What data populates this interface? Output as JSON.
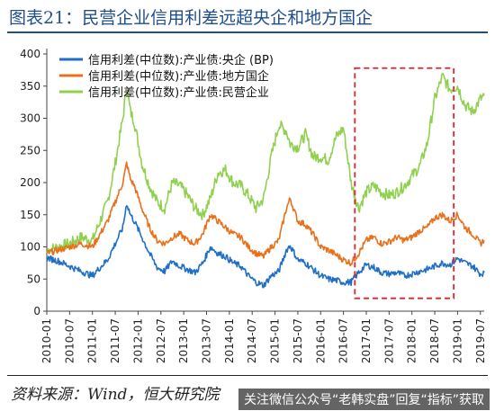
{
  "header": {
    "title": "图表21：民营企业信用利差远超央企和地方国企"
  },
  "footer": {
    "source": "资料来源：Wind，恒大研究院",
    "watermark": "关注微信公众号“老韩实盘”回复“指标”获取"
  },
  "colors": {
    "central": "#1f6fc5",
    "local": "#e8711c",
    "private": "#8fd14f",
    "highlight": "#e0242a",
    "title": "#1f4e8c"
  },
  "chart_data": {
    "type": "line",
    "ylim": [
      0,
      400
    ],
    "yticks": [
      0,
      50,
      100,
      150,
      200,
      250,
      300,
      350,
      400
    ],
    "x_range": [
      "2010-01",
      "2019-08"
    ],
    "xticks": [
      "2010-01",
      "2010-07",
      "2011-01",
      "2011-07",
      "2012-01",
      "2012-07",
      "2013-01",
      "2013-07",
      "2014-01",
      "2014-07",
      "2015-01",
      "2015-07",
      "2016-01",
      "2016-07",
      "2017-01",
      "2017-07",
      "2018-01",
      "2018-07",
      "2019-01",
      "2019-07"
    ],
    "legend_position": "top-left",
    "grid": false,
    "highlight_box": {
      "x_start": "2016-10",
      "x_end": "2018-12",
      "y_start": 20,
      "y_end": 378,
      "style": "dashed"
    },
    "series": [
      {
        "name": "信用利差(中位数):产业债:央企 (BP)",
        "color_key": "central",
        "points": [
          [
            "2010-01",
            83
          ],
          [
            "2010-04",
            78
          ],
          [
            "2010-07",
            70
          ],
          [
            "2010-10",
            62
          ],
          [
            "2011-01",
            55
          ],
          [
            "2011-03",
            68
          ],
          [
            "2011-05",
            80
          ],
          [
            "2011-07",
            105
          ],
          [
            "2011-09",
            130
          ],
          [
            "2011-10",
            168
          ],
          [
            "2011-11",
            150
          ],
          [
            "2011-12",
            140
          ],
          [
            "2012-02",
            115
          ],
          [
            "2012-04",
            90
          ],
          [
            "2012-06",
            68
          ],
          [
            "2012-08",
            62
          ],
          [
            "2012-10",
            78
          ],
          [
            "2012-12",
            70
          ],
          [
            "2013-02",
            65
          ],
          [
            "2013-04",
            60
          ],
          [
            "2013-06",
            75
          ],
          [
            "2013-08",
            100
          ],
          [
            "2013-10",
            90
          ],
          [
            "2013-12",
            85
          ],
          [
            "2014-02",
            75
          ],
          [
            "2014-04",
            70
          ],
          [
            "2014-06",
            55
          ],
          [
            "2014-08",
            45
          ],
          [
            "2014-10",
            40
          ],
          [
            "2014-12",
            55
          ],
          [
            "2015-02",
            62
          ],
          [
            "2015-04",
            95
          ],
          [
            "2015-05",
            102
          ],
          [
            "2015-07",
            80
          ],
          [
            "2015-09",
            75
          ],
          [
            "2015-11",
            65
          ],
          [
            "2016-01",
            55
          ],
          [
            "2016-03",
            50
          ],
          [
            "2016-05",
            48
          ],
          [
            "2016-07",
            45
          ],
          [
            "2016-09",
            45
          ],
          [
            "2016-11",
            60
          ],
          [
            "2017-01",
            72
          ],
          [
            "2017-03",
            68
          ],
          [
            "2017-05",
            60
          ],
          [
            "2017-07",
            58
          ],
          [
            "2017-09",
            60
          ],
          [
            "2017-11",
            55
          ],
          [
            "2018-01",
            58
          ],
          [
            "2018-03",
            62
          ],
          [
            "2018-05",
            65
          ],
          [
            "2018-07",
            70
          ],
          [
            "2018-09",
            75
          ],
          [
            "2018-11",
            72
          ],
          [
            "2019-01",
            82
          ],
          [
            "2019-03",
            75
          ],
          [
            "2019-05",
            70
          ],
          [
            "2019-07",
            58
          ],
          [
            "2019-08",
            60
          ]
        ]
      },
      {
        "name": "信用利差(中位数):产业债:地方国企",
        "color_key": "local",
        "points": [
          [
            "2010-01",
            90
          ],
          [
            "2010-04",
            95
          ],
          [
            "2010-07",
            100
          ],
          [
            "2010-10",
            105
          ],
          [
            "2011-01",
            100
          ],
          [
            "2011-03",
            120
          ],
          [
            "2011-05",
            140
          ],
          [
            "2011-07",
            170
          ],
          [
            "2011-09",
            200
          ],
          [
            "2011-10",
            230
          ],
          [
            "2011-11",
            205
          ],
          [
            "2011-12",
            195
          ],
          [
            "2012-02",
            160
          ],
          [
            "2012-04",
            130
          ],
          [
            "2012-06",
            110
          ],
          [
            "2012-08",
            105
          ],
          [
            "2012-10",
            115
          ],
          [
            "2012-12",
            120
          ],
          [
            "2013-02",
            110
          ],
          [
            "2013-04",
            105
          ],
          [
            "2013-06",
            120
          ],
          [
            "2013-08",
            150
          ],
          [
            "2013-10",
            140
          ],
          [
            "2013-12",
            130
          ],
          [
            "2014-02",
            120
          ],
          [
            "2014-04",
            115
          ],
          [
            "2014-06",
            100
          ],
          [
            "2014-08",
            90
          ],
          [
            "2014-10",
            85
          ],
          [
            "2014-12",
            100
          ],
          [
            "2015-02",
            110
          ],
          [
            "2015-04",
            160
          ],
          [
            "2015-05",
            175
          ],
          [
            "2015-07",
            140
          ],
          [
            "2015-09",
            135
          ],
          [
            "2015-11",
            120
          ],
          [
            "2016-01",
            100
          ],
          [
            "2016-03",
            95
          ],
          [
            "2016-05",
            88
          ],
          [
            "2016-07",
            80
          ],
          [
            "2016-09",
            75
          ],
          [
            "2016-11",
            90
          ],
          [
            "2017-01",
            110
          ],
          [
            "2017-03",
            115
          ],
          [
            "2017-05",
            105
          ],
          [
            "2017-07",
            108
          ],
          [
            "2017-09",
            115
          ],
          [
            "2017-11",
            110
          ],
          [
            "2018-01",
            115
          ],
          [
            "2018-03",
            125
          ],
          [
            "2018-05",
            130
          ],
          [
            "2018-07",
            145
          ],
          [
            "2018-09",
            150
          ],
          [
            "2018-11",
            140
          ],
          [
            "2019-01",
            150
          ],
          [
            "2019-03",
            130
          ],
          [
            "2019-05",
            120
          ],
          [
            "2019-07",
            105
          ],
          [
            "2019-08",
            110
          ]
        ]
      },
      {
        "name": "信用利差(中位数):产业债:民营企业",
        "color_key": "private",
        "points": [
          [
            "2010-01",
            95
          ],
          [
            "2010-04",
            100
          ],
          [
            "2010-07",
            105
          ],
          [
            "2010-10",
            115
          ],
          [
            "2011-01",
            110
          ],
          [
            "2011-03",
            140
          ],
          [
            "2011-05",
            170
          ],
          [
            "2011-07",
            230
          ],
          [
            "2011-09",
            300
          ],
          [
            "2011-10",
            350
          ],
          [
            "2011-11",
            310
          ],
          [
            "2011-12",
            295
          ],
          [
            "2012-02",
            230
          ],
          [
            "2012-04",
            195
          ],
          [
            "2012-06",
            170
          ],
          [
            "2012-08",
            160
          ],
          [
            "2012-10",
            200
          ],
          [
            "2012-12",
            195
          ],
          [
            "2013-02",
            180
          ],
          [
            "2013-04",
            160
          ],
          [
            "2013-06",
            150
          ],
          [
            "2013-08",
            175
          ],
          [
            "2013-10",
            215
          ],
          [
            "2013-12",
            220
          ],
          [
            "2014-02",
            200
          ],
          [
            "2014-04",
            195
          ],
          [
            "2014-06",
            180
          ],
          [
            "2014-08",
            160
          ],
          [
            "2014-10",
            175
          ],
          [
            "2014-12",
            240
          ],
          [
            "2015-02",
            290
          ],
          [
            "2015-04",
            280
          ],
          [
            "2015-05",
            260
          ],
          [
            "2015-07",
            255
          ],
          [
            "2015-09",
            275
          ],
          [
            "2015-11",
            240
          ],
          [
            "2016-01",
            240
          ],
          [
            "2016-03",
            235
          ],
          [
            "2016-05",
            270
          ],
          [
            "2016-07",
            285
          ],
          [
            "2016-09",
            200
          ],
          [
            "2016-11",
            160
          ],
          [
            "2017-01",
            185
          ],
          [
            "2017-03",
            195
          ],
          [
            "2017-05",
            185
          ],
          [
            "2017-07",
            180
          ],
          [
            "2017-09",
            185
          ],
          [
            "2017-11",
            195
          ],
          [
            "2018-01",
            210
          ],
          [
            "2018-03",
            225
          ],
          [
            "2018-05",
            260
          ],
          [
            "2018-07",
            330
          ],
          [
            "2018-09",
            365
          ],
          [
            "2018-11",
            345
          ],
          [
            "2019-01",
            350
          ],
          [
            "2019-03",
            320
          ],
          [
            "2019-05",
            310
          ],
          [
            "2019-07",
            330
          ],
          [
            "2019-08",
            335
          ]
        ]
      }
    ]
  }
}
